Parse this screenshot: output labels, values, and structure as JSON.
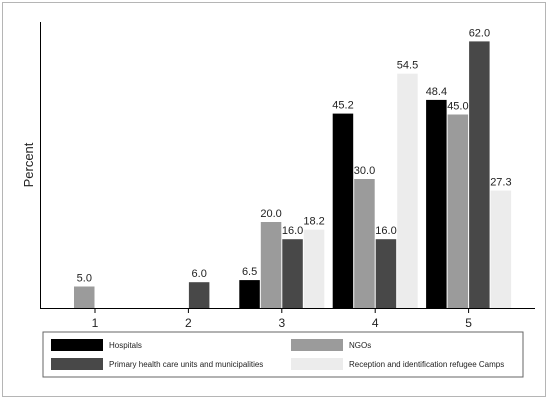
{
  "chart_data": {
    "type": "bar",
    "categories": [
      "1",
      "2",
      "3",
      "4",
      "5"
    ],
    "ylabel": "Percent",
    "xlabel": "",
    "ylim": [
      0,
      65
    ],
    "grid": false,
    "legend_position": "bottom",
    "series": [
      {
        "name": "Hospitals",
        "color": "#000000",
        "values": [
          null,
          null,
          6.5,
          45.2,
          48.4
        ]
      },
      {
        "name": "NGOs",
        "color": "#9b9b9b",
        "values": [
          5.0,
          null,
          20.0,
          30.0,
          45.0
        ]
      },
      {
        "name": "Primary health care units and municipalities",
        "color": "#484848",
        "values": [
          null,
          6.0,
          16.0,
          16.0,
          62.0
        ]
      },
      {
        "name": "Reception and identification refugee Camps",
        "color": "#ececec",
        "values": [
          null,
          null,
          18.2,
          54.5,
          27.3
        ]
      }
    ]
  }
}
